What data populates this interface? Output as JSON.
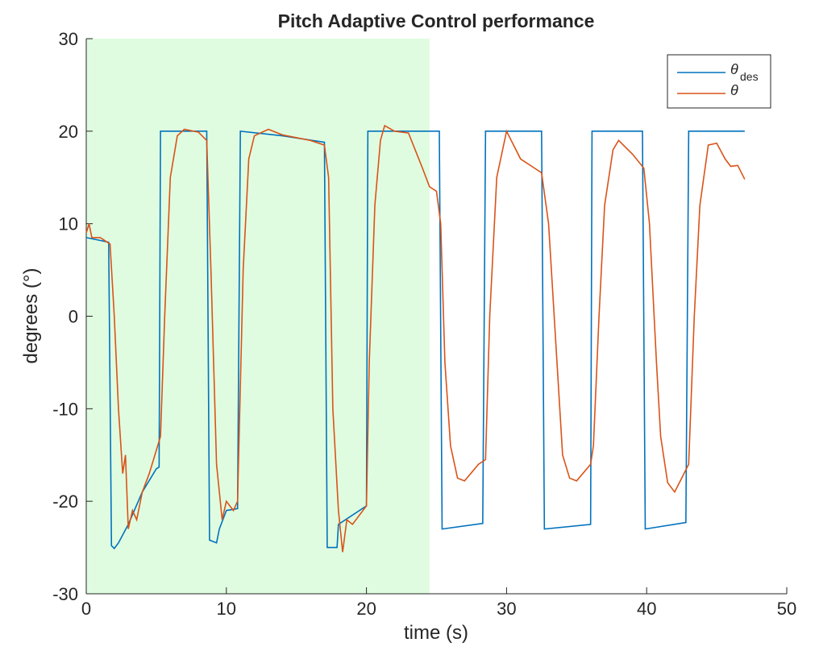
{
  "chart_data": {
    "type": "line",
    "title": "Pitch Adaptive Control performance",
    "x_label": "time (s)",
    "y_label": "degrees (°)",
    "xlim": [
      0,
      50
    ],
    "xticks": [
      0,
      10,
      20,
      30,
      40,
      50
    ],
    "ylim": [
      -30,
      30
    ],
    "yticks": [
      -30,
      -20,
      -10,
      0,
      10,
      20,
      30
    ],
    "grid": false,
    "legend_position": "upper right",
    "shaded_region": {
      "x": [
        0,
        24.5
      ],
      "color": "#e0fce0"
    },
    "series": [
      {
        "name": "θ",
        "subscript": "des",
        "color": "#0072bd",
        "x": [
          0,
          1.6,
          1.8,
          2.0,
          2.3,
          3,
          4,
          5,
          5.2,
          5.3,
          8.6,
          8.8,
          9.3,
          9.5,
          10,
          10.8,
          11,
          14,
          17,
          17.2,
          17.9,
          18.0,
          20,
          20.1,
          25.2,
          25.4,
          28.3,
          28.5,
          32.5,
          32.7,
          36.0,
          36.1,
          39.7,
          39.9,
          42.8,
          43.0,
          47
        ],
        "values": [
          8.5,
          8,
          -24.8,
          -25.1,
          -24.5,
          -22.5,
          -19,
          -16.5,
          -16.3,
          20,
          20,
          -24.2,
          -24.5,
          -23,
          -21,
          -20.8,
          20,
          19.5,
          18.8,
          -25,
          -25,
          -22.5,
          -20.5,
          20,
          20,
          -23,
          -22.4,
          20,
          20,
          -23,
          -22.5,
          20,
          20,
          -23,
          -22.3,
          20,
          20
        ]
      },
      {
        "name": "θ",
        "color": "#d95319",
        "x": [
          0,
          0.2,
          0.4,
          1,
          1.7,
          2.0,
          2.3,
          2.6,
          2.8,
          3.0,
          3.3,
          3.6,
          4,
          4.5,
          5,
          5.3,
          5.6,
          6,
          6.5,
          7,
          8,
          8.6,
          8.9,
          9.3,
          9.7,
          10,
          10.5,
          10.8,
          11.2,
          11.6,
          12,
          13,
          14,
          16,
          17,
          17.3,
          17.6,
          18,
          18.3,
          18.6,
          19,
          20,
          20.2,
          20.6,
          21,
          21.3,
          22,
          23,
          24,
          24.5,
          25,
          25.3,
          25.6,
          26,
          26.5,
          27,
          28,
          28.5,
          28.8,
          29.3,
          30,
          31,
          32,
          32.5,
          33,
          33.6,
          34,
          34.5,
          35,
          36,
          36.2,
          36.6,
          37,
          37.6,
          38,
          39,
          39.8,
          40.2,
          40.7,
          41,
          41.5,
          42,
          42.5,
          43,
          43.4,
          43.8,
          44.4,
          45,
          45.6,
          46,
          46.5,
          47
        ],
        "values": [
          9,
          10,
          8.5,
          8.5,
          7.8,
          0,
          -10,
          -17,
          -15,
          -23,
          -21,
          -22,
          -19,
          -17,
          -14.5,
          -13,
          0,
          15,
          19.5,
          20.2,
          19.9,
          19,
          5,
          -16,
          -22,
          -20,
          -21,
          -20,
          5,
          17,
          19.5,
          20.2,
          19.6,
          19,
          18.5,
          15,
          -10,
          -21,
          -25.5,
          -22,
          -22.5,
          -20.5,
          -5,
          12,
          19,
          20.6,
          20,
          19.8,
          16,
          14,
          13.5,
          10,
          -5,
          -14,
          -17.5,
          -17.8,
          -16,
          -15.5,
          0,
          15,
          20,
          17,
          16,
          15.5,
          10,
          -5,
          -15,
          -17.5,
          -17.8,
          -16,
          -14,
          0,
          12,
          18,
          19,
          17.5,
          16,
          10,
          -5,
          -13,
          -18,
          -19,
          -17.5,
          -16,
          0,
          12,
          18.5,
          18.7,
          17,
          16.2,
          16.3,
          14.8
        ]
      }
    ]
  }
}
